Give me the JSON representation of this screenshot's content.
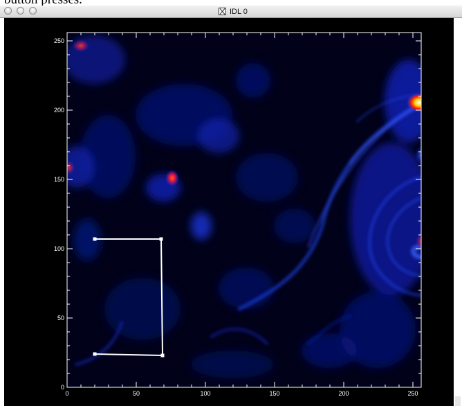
{
  "page_caption": "button presses.",
  "window": {
    "title": "IDL 0",
    "title_icon": "x11-icon",
    "controls": [
      "close-button",
      "minimize-button",
      "zoom-button"
    ]
  },
  "plot": {
    "x_ticks": [
      "0",
      "50",
      "100",
      "150",
      "200",
      "250"
    ],
    "y_ticks": [
      "0",
      "50",
      "100",
      "150",
      "200",
      "250"
    ],
    "x_range": [
      0,
      256
    ],
    "y_range": [
      0,
      256
    ],
    "colormap": [
      "#000000",
      "#00007a",
      "#0a24d8",
      "#3a6cff",
      "#ff0000",
      "#ffd000",
      "#ffffff"
    ],
    "roi_polyline": [
      [
        20,
        107
      ],
      [
        68,
        107
      ],
      [
        69,
        23
      ],
      [
        20,
        24
      ]
    ],
    "roi_color": "#ffffff"
  }
}
